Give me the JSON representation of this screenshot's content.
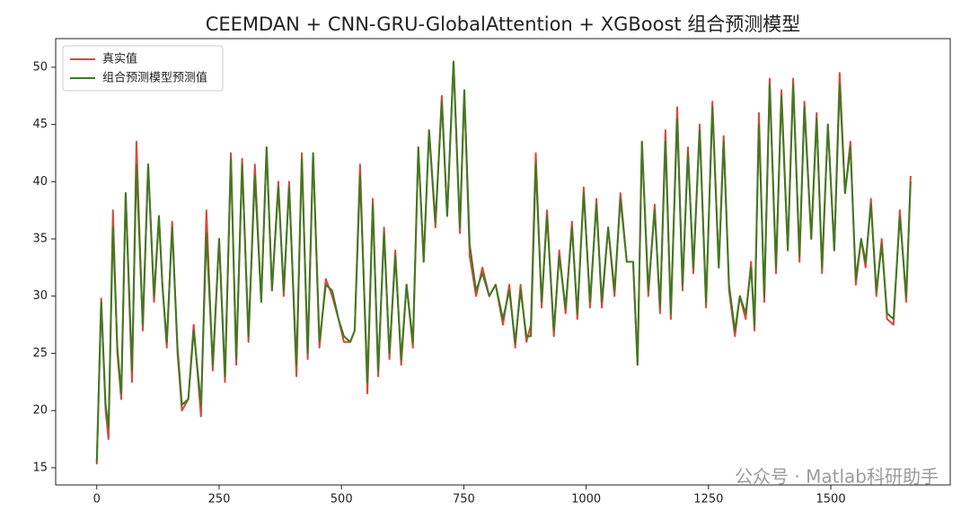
{
  "chart_data": {
    "type": "line",
    "title": "CEEMDAN + CNN-GRU-GlobalAttention + XGBoost 组合预测模型",
    "annotation": "公众号 · Matlab科研助手",
    "legend": "upper left",
    "grid": false,
    "xlim": [
      -84,
      1744
    ],
    "ylim": [
      13.5,
      52.5
    ],
    "xticks": [
      0,
      250,
      500,
      750,
      1000,
      1250,
      1500
    ],
    "yticks": [
      15,
      20,
      25,
      30,
      35,
      40,
      45,
      50
    ],
    "x": [
      0,
      9,
      18,
      24,
      33,
      42,
      50,
      59,
      72,
      81,
      94,
      105,
      117,
      127,
      134,
      143,
      154,
      165,
      174,
      187,
      198,
      213,
      224,
      237,
      250,
      262,
      274,
      285,
      297,
      310,
      323,
      336,
      347,
      358,
      371,
      382,
      393,
      408,
      419,
      431,
      442,
      455,
      468,
      481,
      494,
      505,
      518,
      527,
      538,
      553,
      564,
      575,
      587,
      598,
      610,
      622,
      633,
      646,
      657,
      668,
      679,
      692,
      705,
      716,
      729,
      742,
      751,
      762,
      775,
      788,
      802,
      815,
      830,
      843,
      855,
      866,
      878,
      887,
      897,
      909,
      920,
      934,
      945,
      958,
      971,
      982,
      995,
      1008,
      1021,
      1032,
      1045,
      1058,
      1070,
      1083,
      1096,
      1105,
      1114,
      1127,
      1140,
      1151,
      1162,
      1173,
      1186,
      1197,
      1208,
      1219,
      1232,
      1245,
      1258,
      1271,
      1281,
      1292,
      1304,
      1314,
      1326,
      1337,
      1344,
      1353,
      1364,
      1375,
      1388,
      1399,
      1412,
      1423,
      1436,
      1446,
      1460,
      1471,
      1482,
      1494,
      1507,
      1518,
      1529,
      1540,
      1551,
      1562,
      1571,
      1582,
      1593,
      1604,
      1615,
      1628,
      1641,
      1654,
      1663
    ],
    "series": [
      {
        "name": "真实值",
        "color": "#d9483b",
        "values": [
          15.3,
          29.8,
          20,
          17.5,
          37.5,
          25,
          21,
          39,
          22.5,
          43.5,
          27,
          41.5,
          29.5,
          37,
          31,
          25.5,
          36.5,
          25,
          20,
          21,
          27.5,
          19.5,
          37.5,
          23.5,
          35,
          22.5,
          42.5,
          24,
          42,
          26,
          41.5,
          29.5,
          43,
          30.5,
          40,
          30,
          40,
          23,
          42.5,
          24.5,
          42.5,
          25.5,
          31.5,
          30,
          28,
          26,
          26,
          27,
          41.5,
          21.5,
          38.5,
          23,
          36,
          24.5,
          34,
          24,
          31,
          25.5,
          43,
          33,
          44.5,
          36,
          47.5,
          37,
          50.5,
          35.5,
          48,
          33.5,
          30,
          32.5,
          30,
          31,
          27.5,
          31,
          25.5,
          31,
          26,
          27.5,
          42.5,
          29,
          37.5,
          26.5,
          34,
          28.5,
          36.5,
          28,
          39.5,
          29,
          38.5,
          29,
          36,
          30,
          39,
          33,
          33,
          24,
          43.5,
          30,
          38,
          28.5,
          44.5,
          28,
          46.5,
          30.5,
          43,
          32,
          45,
          29,
          47,
          32.5,
          44,
          30.5,
          26.5,
          30,
          28,
          33,
          27,
          46,
          29.5,
          49,
          32,
          48,
          34,
          49,
          33,
          47,
          35,
          46,
          32,
          45,
          34,
          49.5,
          39,
          43.5,
          31,
          35,
          32.5,
          38.5,
          30,
          35,
          28,
          27.5,
          37.5,
          29.5,
          40.5
        ]
      },
      {
        "name": "组合预测模型预测值",
        "color": "#3f7a22",
        "values": [
          15.5,
          29.5,
          20.5,
          18.5,
          36,
          25.5,
          21.5,
          39,
          23.5,
          41.5,
          27.5,
          41.5,
          30,
          37,
          31,
          26,
          36,
          25.5,
          20.5,
          21,
          27,
          20.5,
          35.5,
          24,
          35,
          23,
          42,
          24.5,
          41.5,
          26.5,
          40.5,
          29.5,
          43,
          30.5,
          39.5,
          30.5,
          39.5,
          24,
          42,
          25,
          42.5,
          26,
          31,
          30.5,
          28,
          26.5,
          26,
          27,
          40.5,
          22.5,
          38,
          23.5,
          35.5,
          25,
          33.5,
          24.5,
          31,
          26,
          43,
          33,
          44.5,
          36.5,
          47,
          37,
          50.5,
          36,
          48,
          34.5,
          30.5,
          32,
          30,
          31,
          28,
          30.5,
          26,
          30.5,
          26.5,
          26.5,
          41.5,
          29.5,
          37,
          27,
          33.5,
          29,
          36,
          28.5,
          39,
          29.5,
          38,
          29.5,
          36,
          30.5,
          38.5,
          33,
          33,
          24,
          43.5,
          30.5,
          37.5,
          29,
          43.5,
          28.5,
          45.5,
          31,
          42.5,
          32.5,
          44.5,
          29.5,
          46.5,
          32.5,
          43.5,
          31,
          27,
          30,
          28.5,
          32.5,
          27.5,
          45,
          30,
          48.5,
          32.5,
          47.5,
          34,
          48.5,
          33.5,
          46.5,
          35,
          45.5,
          32.5,
          45,
          34,
          48.5,
          39,
          43,
          31.5,
          35,
          33,
          38,
          30.5,
          34.5,
          28.5,
          28,
          37,
          30,
          40
        ]
      }
    ]
  }
}
